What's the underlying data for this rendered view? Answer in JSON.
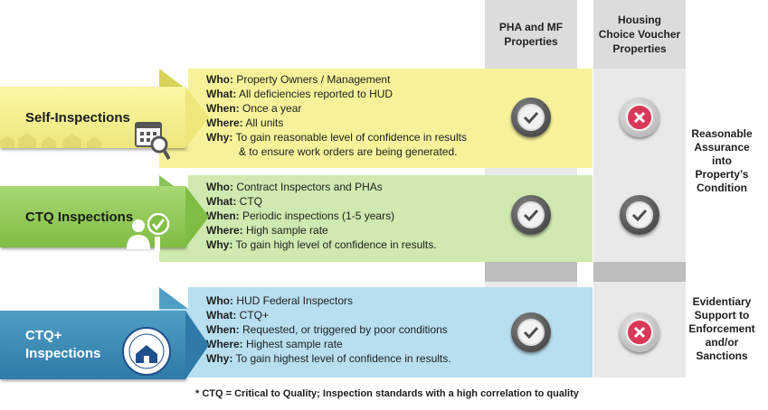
{
  "columns": {
    "pha_mf": "PHA and MF\nProperties",
    "hcv": "Housing\nChoice Voucher\nProperties"
  },
  "rows": [
    {
      "label": "Self-Inspections",
      "icon": "calendar-magnifier-icon",
      "who": "Property Owners / Management",
      "what": "All deficiencies reported to HUD",
      "when": "Once a year",
      "where": "All units",
      "why": "To gain reasonable level of confidence in results",
      "why2": "& to ensure work orders are being generated.",
      "pha_mf": "check",
      "hcv": "cross"
    },
    {
      "label": "CTQ Inspections",
      "icon": "inspector-check-icon",
      "who": "Contract Inspectors and PHAs",
      "what": "CTQ",
      "when": "Periodic inspections (1-5 years)",
      "where": "High sample rate",
      "why": "To gain high level of confidence in results.",
      "pha_mf": "check",
      "hcv": "check"
    },
    {
      "label": "CTQ+\nInspections",
      "icon": "hud-seal-icon",
      "who": "HUD Federal Inspectors",
      "what": "CTQ+",
      "when": "Requested, or triggered by poor conditions",
      "where": "Highest sample rate",
      "why": "To gain highest level of confidence in results.",
      "pha_mf": "check",
      "hcv": "cross"
    }
  ],
  "field_labels": {
    "who": "Who:",
    "what": "What:",
    "when": "When:",
    "where": "Where:",
    "why": "Why:"
  },
  "side_labels": {
    "top": "Reasonable\nAssurance\ninto\nProperty’s\nCondition",
    "bottom": "Evidentiary\nSupport to\nEnforcement\nand/or\nSanctions"
  },
  "footnote": "* CTQ = Critical to Quality; Inspection standards  with a high correlation to quality",
  "colors": {
    "yellow": "#f7f29a",
    "yellow_dark": "#d9d45a",
    "green": "#cfe9b0",
    "green_dark": "#8cc45a",
    "blue": "#b7dff0",
    "blue_dark": "#4f9fc4",
    "check": "#4d4d4d",
    "cross": "#d9385a"
  }
}
